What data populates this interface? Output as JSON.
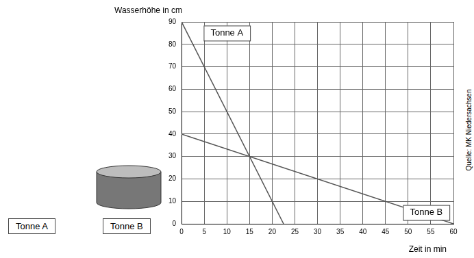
{
  "chart_data": {
    "type": "line",
    "x_label": "Zeit in min",
    "y_label": "Wasserhöhe in cm",
    "xlim": [
      0,
      60
    ],
    "xticks": [
      0,
      5,
      10,
      15,
      20,
      25,
      30,
      35,
      40,
      45,
      50,
      55,
      60
    ],
    "ylim": [
      0,
      90
    ],
    "yticks": [
      0,
      10,
      20,
      30,
      40,
      50,
      60,
      70,
      80,
      90
    ],
    "grid": true,
    "series": [
      {
        "name": "Tonne A",
        "color": "#555555",
        "line_style": "solid",
        "x": [
          0,
          22.5
        ],
        "values": [
          90,
          0
        ]
      },
      {
        "name": "Tonne B",
        "color": "#555555",
        "line_style": "solid",
        "x": [
          0,
          60
        ],
        "values": [
          40,
          0
        ]
      }
    ],
    "annotations": [
      {
        "text": "Tonne A",
        "x": 10,
        "y": 85
      },
      {
        "text": "Tonne B",
        "x": 54,
        "y": 5
      }
    ],
    "panel_labels": [
      "Tonne A",
      "Tonne B"
    ],
    "source": "Quelle: MK Niedersachsen"
  }
}
